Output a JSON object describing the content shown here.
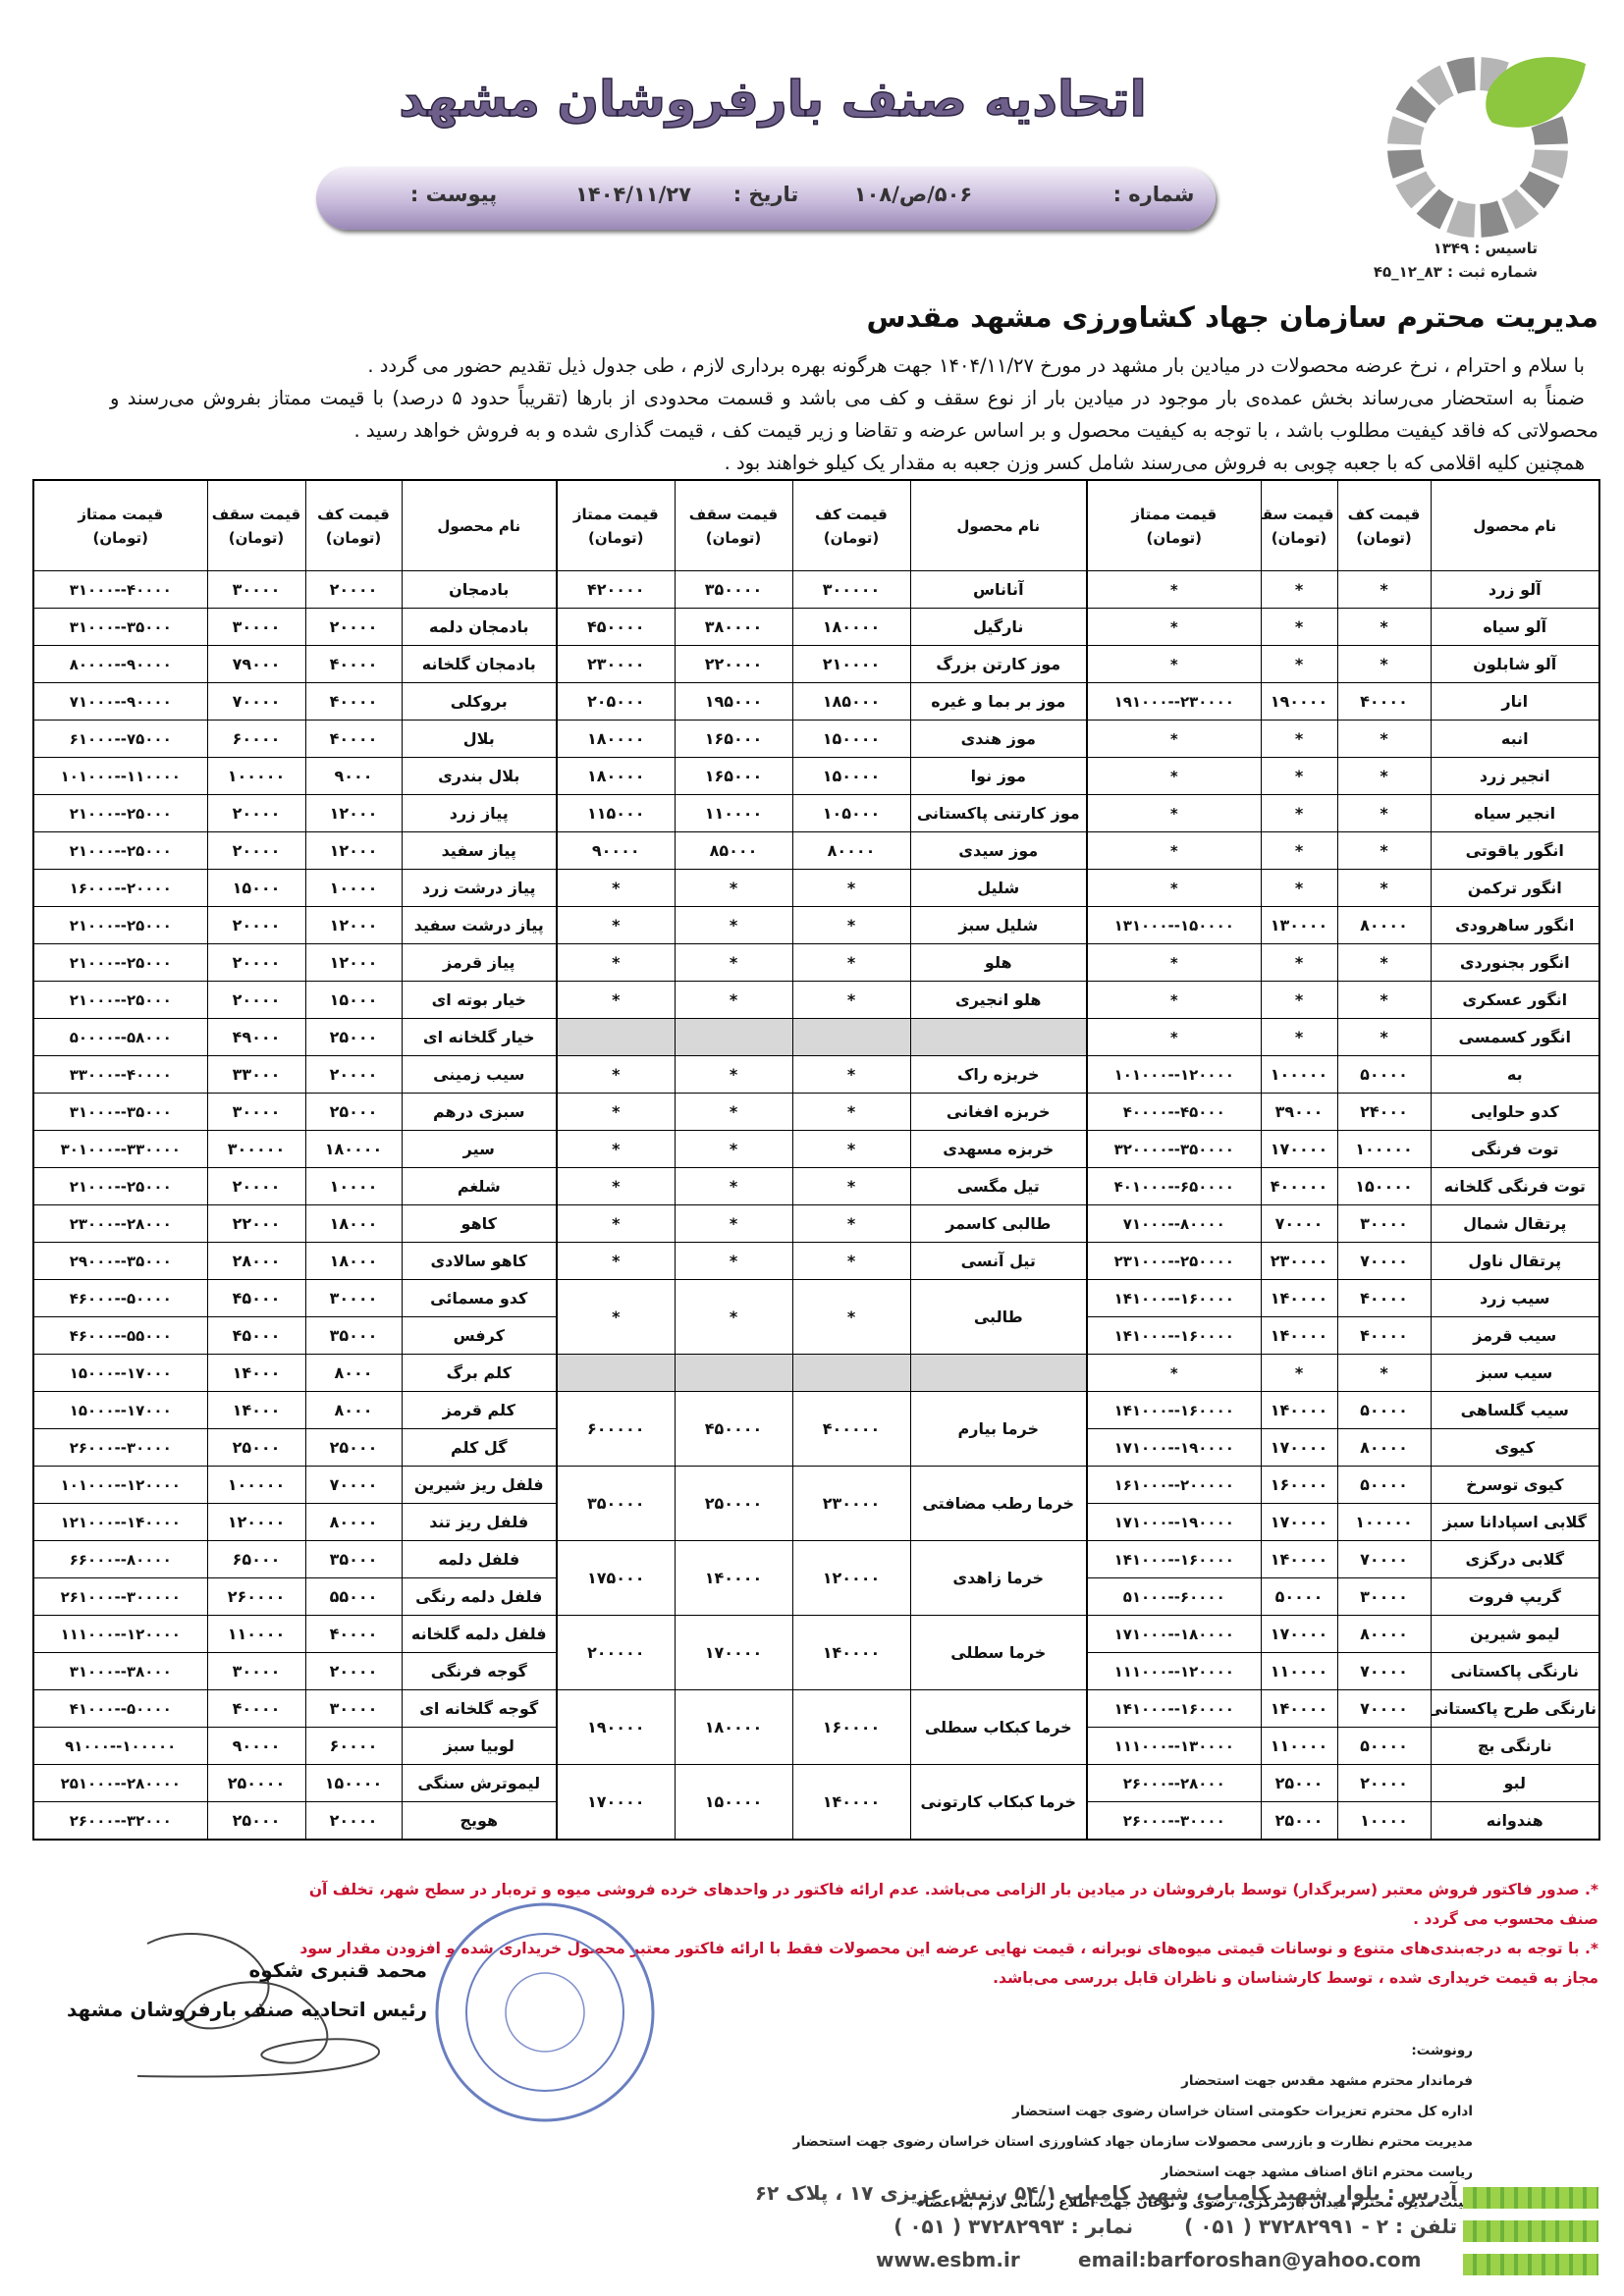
{
  "header": {
    "title": "اتحادیه صنف بارفروشان مشهد",
    "number_label": "شماره :",
    "number": "۵۰۶/ص/۱۰۸",
    "date_label": "تاریخ :",
    "date": "۱۴۰۴/۱۱/۲۷",
    "attachment_label": "پیوست :",
    "founded": "تاسیس : ۱۳۴۹",
    "registration": "شماره ثبت : ۸۳_۱۲_۴۵"
  },
  "letter": {
    "addressee": "مدیریت محترم سازمان جهاد کشاورزی مشهد مقدس",
    "paragraphs": [
      "با سلام و احترام ، نرخ عرضه محصولات در میادین بار مشهد در مورخ ۱۴۰۴/۱۱/۲۷ جهت هرگونه بهره برداری لازم ، طی جدول ذیل تقدیم حضور می گردد .",
      "ضمناً به استحضار می‌رساند بخش عمده‌ی بار موجود در میادین بار از نوع سقف و کف می باشد و قسمت محدودی از بارها (تقریباً حدود ۵ درصد) با قیمت ممتاز بفروش می‌رسند و محصولاتی که فاقد کیفیت مطلوب باشد ، با توجه به کیفیت محصول و بر اساس عرضه و تقاضا و زیر قیمت کف ، قیمت گذاری شده و به فروش خواهد رسید .",
      "همچنین کلیه اقلامی که با جعبه چوبی به فروش می‌رسند شامل کسر وزن جعبه به مقدار یک کیلو خواهند بود ."
    ]
  },
  "table": {
    "headers": [
      {
        "label": "نام محصول"
      },
      {
        "label": "قیمت کف",
        "unit": "(تومان)"
      },
      {
        "label": "قیمت سقف",
        "unit": "(تومان)"
      },
      {
        "label": "قیمت ممتاز",
        "unit": "(تومان)"
      }
    ],
    "rows": [
      {
        "right": [
          "آلو زرد",
          "*",
          "*",
          "*"
        ],
        "middle": [
          "آناناس",
          "۳۰۰۰۰۰",
          "۳۵۰۰۰۰",
          "۴۲۰۰۰۰"
        ],
        "left": [
          "بادمجان",
          "۲۰۰۰۰",
          "۳۰۰۰۰",
          "۳۱۰۰۰--۴۰۰۰۰"
        ]
      },
      {
        "right": [
          "آلو سیاه",
          "*",
          "*",
          "*"
        ],
        "middle": [
          "نارگیل",
          "۱۸۰۰۰۰",
          "۳۸۰۰۰۰",
          "۴۵۰۰۰۰"
        ],
        "left": [
          "بادمجان دلمه",
          "۲۰۰۰۰",
          "۳۰۰۰۰",
          "۳۱۰۰۰--۳۵۰۰۰"
        ]
      },
      {
        "right": [
          "آلو شابلون",
          "*",
          "*",
          "*"
        ],
        "middle": [
          "موز کارتن بزرگ",
          "۲۱۰۰۰۰",
          "۲۲۰۰۰۰",
          "۲۳۰۰۰۰"
        ],
        "left": [
          "بادمجان گلخانه",
          "۴۰۰۰۰",
          "۷۹۰۰۰",
          "۸۰۰۰۰--۹۰۰۰۰"
        ]
      },
      {
        "right": [
          "انار",
          "۴۰۰۰۰",
          "۱۹۰۰۰۰",
          "۱۹۱۰۰۰--۲۳۰۰۰۰"
        ],
        "middle": [
          "موز بر بما و غیره",
          "۱۸۵۰۰۰",
          "۱۹۵۰۰۰",
          "۲۰۵۰۰۰"
        ],
        "left": [
          "بروکلی",
          "۴۰۰۰۰",
          "۷۰۰۰۰",
          "۷۱۰۰۰--۹۰۰۰۰"
        ]
      },
      {
        "right": [
          "انبه",
          "*",
          "*",
          "*"
        ],
        "middle": [
          "موز هندی",
          "۱۵۰۰۰۰",
          "۱۶۵۰۰۰",
          "۱۸۰۰۰۰"
        ],
        "left": [
          "بلال",
          "۴۰۰۰۰",
          "۶۰۰۰۰",
          "۶۱۰۰۰--۷۵۰۰۰"
        ]
      },
      {
        "right": [
          "انجیر زرد",
          "*",
          "*",
          "*"
        ],
        "middle": [
          "موز نوا",
          "۱۵۰۰۰۰",
          "۱۶۵۰۰۰",
          "۱۸۰۰۰۰"
        ],
        "left": [
          "بلال بندری",
          "۹۰۰۰",
          "۱۰۰۰۰۰",
          "۱۰۱۰۰۰--۱۱۰۰۰۰"
        ]
      },
      {
        "right": [
          "انجیر سیاه",
          "*",
          "*",
          "*"
        ],
        "middle": [
          "موز کارتنی پاکستانی",
          "۱۰۵۰۰۰",
          "۱۱۰۰۰۰",
          "۱۱۵۰۰۰"
        ],
        "left": [
          "پیاز زرد",
          "۱۲۰۰۰",
          "۲۰۰۰۰",
          "۲۱۰۰۰--۲۵۰۰۰"
        ]
      },
      {
        "right": [
          "انگور یاقوتی",
          "*",
          "*",
          "*"
        ],
        "middle": [
          "موز سیدی",
          "۸۰۰۰۰",
          "۸۵۰۰۰",
          "۹۰۰۰۰"
        ],
        "left": [
          "پیاز سفید",
          "۱۲۰۰۰",
          "۲۰۰۰۰",
          "۲۱۰۰۰--۲۵۰۰۰"
        ]
      },
      {
        "right": [
          "انگور ترکمن",
          "*",
          "*",
          "*"
        ],
        "middle": [
          "شلیل",
          "*",
          "*",
          "*"
        ],
        "left": [
          "پیاز درشت زرد",
          "۱۰۰۰۰",
          "۱۵۰۰۰",
          "۱۶۰۰۰--۲۰۰۰۰"
        ]
      },
      {
        "right": [
          "انگور ساهرودی",
          "۸۰۰۰۰",
          "۱۳۰۰۰۰",
          "۱۳۱۰۰۰--۱۵۰۰۰۰"
        ],
        "middle": [
          "شلیل سبز",
          "*",
          "*",
          "*"
        ],
        "left": [
          "پیاز درشت سفید",
          "۱۲۰۰۰",
          "۲۰۰۰۰",
          "۲۱۰۰۰--۲۵۰۰۰"
        ]
      },
      {
        "right": [
          "انگور بجنوردی",
          "*",
          "*",
          "*"
        ],
        "middle": [
          "هلو",
          "*",
          "*",
          "*"
        ],
        "left": [
          "پیاز قرمز",
          "۱۲۰۰۰",
          "۲۰۰۰۰",
          "۲۱۰۰۰--۲۵۰۰۰"
        ]
      },
      {
        "right": [
          "انگور عسکری",
          "*",
          "*",
          "*"
        ],
        "middle": [
          "هلو انجیری",
          "*",
          "*",
          "*"
        ],
        "left": [
          "خیار بوته ای",
          "۱۵۰۰۰",
          "۲۰۰۰۰",
          "۲۱۰۰۰--۲۵۰۰۰"
        ]
      },
      {
        "right": [
          "انگور کسمسی",
          "*",
          "*",
          "*"
        ],
        "middle": [],
        "left": [
          "خیار گلخانه ای",
          "۲۵۰۰۰",
          "۴۹۰۰۰",
          "۵۰۰۰۰--۵۸۰۰۰"
        ]
      },
      {
        "right": [
          "به",
          "۵۰۰۰۰",
          "۱۰۰۰۰۰",
          "۱۰۱۰۰۰--۱۲۰۰۰۰"
        ],
        "middle": [
          "خربزه راک",
          "*",
          "*",
          "*"
        ],
        "left": [
          "سیب زمینی",
          "۲۰۰۰۰",
          "۳۳۰۰۰",
          "۳۳۰۰۰--۴۰۰۰۰"
        ]
      },
      {
        "right": [
          "کدو حلوایی",
          "۲۴۰۰۰",
          "۳۹۰۰۰",
          "۴۰۰۰۰--۴۵۰۰۰"
        ],
        "middle": [
          "خربزه افغانی",
          "*",
          "*",
          "*"
        ],
        "left": [
          "سبزی درهم",
          "۲۵۰۰۰",
          "۳۰۰۰۰",
          "۳۱۰۰۰--۳۵۰۰۰"
        ]
      },
      {
        "right": [
          "توت فرنگی",
          "۱۰۰۰۰۰",
          "۱۷۰۰۰۰",
          "۳۲۰۰۰۰--۳۵۰۰۰۰"
        ],
        "middle": [
          "خربزه مسهدی",
          "*",
          "*",
          "*"
        ],
        "left": [
          "سیر",
          "۱۸۰۰۰۰",
          "۳۰۰۰۰۰",
          "۳۰۱۰۰۰--۳۳۰۰۰۰"
        ]
      },
      {
        "right": [
          "توت فرنگی گلخانه",
          "۱۵۰۰۰۰",
          "۴۰۰۰۰۰",
          "۴۰۱۰۰۰--۶۵۰۰۰۰"
        ],
        "middle": [
          "تیل مگسی",
          "*",
          "*",
          "*"
        ],
        "left": [
          "شلغم",
          "۱۰۰۰۰",
          "۲۰۰۰۰",
          "۲۱۰۰۰--۲۵۰۰۰"
        ]
      },
      {
        "right": [
          "پرتقال شمال",
          "۳۰۰۰۰",
          "۷۰۰۰۰",
          "۷۱۰۰۰--۸۰۰۰۰"
        ],
        "middle": [
          "طالبی کاسمر",
          "*",
          "*",
          "*"
        ],
        "left": [
          "کاهو",
          "۱۸۰۰۰",
          "۲۲۰۰۰",
          "۲۳۰۰۰--۲۸۰۰۰"
        ]
      },
      {
        "right": [
          "پرتقال ناول",
          "۷۰۰۰۰",
          "۲۳۰۰۰۰",
          "۲۳۱۰۰۰--۲۵۰۰۰۰"
        ],
        "middle": [
          "تیل آنسی",
          "*",
          "*",
          "*"
        ],
        "left": [
          "کاهو سالادی",
          "۱۸۰۰۰",
          "۲۸۰۰۰",
          "۲۹۰۰۰--۳۵۰۰۰"
        ]
      },
      {
        "right": [
          "سیب زرد",
          "۴۰۰۰۰",
          "۱۴۰۰۰۰",
          "۱۴۱۰۰۰--۱۶۰۰۰۰"
        ],
        "middle": [
          "طالبی",
          "*",
          "*",
          "*"
        ],
        "left": [
          "کدو مسمائی",
          "۳۰۰۰۰",
          "۴۵۰۰۰",
          "۴۶۰۰۰--۵۰۰۰۰"
        ]
      },
      {
        "right": [
          "سیب قرمز",
          "۴۰۰۰۰",
          "۱۴۰۰۰۰",
          "۱۴۱۰۰۰--۱۶۰۰۰۰"
        ],
        "left": [
          "کرفس",
          "۳۵۰۰۰",
          "۴۵۰۰۰",
          "۴۶۰۰۰--۵۵۰۰۰"
        ]
      },
      {
        "right": [
          "سیب سبز",
          "*",
          "*",
          "*"
        ],
        "middle": [],
        "left": [
          "کلم برگ",
          "۸۰۰۰",
          "۱۴۰۰۰",
          "۱۵۰۰۰--۱۷۰۰۰"
        ]
      },
      {
        "right": [
          "سیب گلساهی",
          "۵۰۰۰۰",
          "۱۴۰۰۰۰",
          "۱۴۱۰۰۰--۱۶۰۰۰۰"
        ],
        "middle": [
          "خرما بیارم",
          "۴۰۰۰۰۰",
          "۴۵۰۰۰۰",
          "۶۰۰۰۰۰"
        ],
        "left": [
          "کلم قرمز",
          "۸۰۰۰",
          "۱۴۰۰۰",
          "۱۵۰۰۰--۱۷۰۰۰"
        ]
      },
      {
        "right": [
          "کیوی",
          "۸۰۰۰۰",
          "۱۷۰۰۰۰",
          "۱۷۱۰۰۰--۱۹۰۰۰۰"
        ],
        "left": [
          "گل کلم",
          "۲۵۰۰۰",
          "۲۵۰۰۰",
          "۲۶۰۰۰--۳۰۰۰۰"
        ]
      },
      {
        "right": [
          "کیوی توسرخ",
          "۵۰۰۰۰",
          "۱۶۰۰۰۰",
          "۱۶۱۰۰۰--۲۰۰۰۰۰"
        ],
        "middle": [
          "خرما رطب مضافتی",
          "۲۳۰۰۰۰",
          "۲۵۰۰۰۰",
          "۳۵۰۰۰۰"
        ],
        "left": [
          "فلفل ریز شیرین",
          "۷۰۰۰۰",
          "۱۰۰۰۰۰",
          "۱۰۱۰۰۰--۱۲۰۰۰۰"
        ]
      },
      {
        "right": [
          "گلابی اسپادانا سبز",
          "۱۰۰۰۰۰",
          "۱۷۰۰۰۰",
          "۱۷۱۰۰۰--۱۹۰۰۰۰"
        ],
        "left": [
          "فلفل ریز تند",
          "۸۰۰۰۰",
          "۱۲۰۰۰۰",
          "۱۲۱۰۰۰--۱۴۰۰۰۰"
        ]
      },
      {
        "right": [
          "گلابی درگزی",
          "۷۰۰۰۰",
          "۱۴۰۰۰۰",
          "۱۴۱۰۰۰--۱۶۰۰۰۰"
        ],
        "middle": [
          "خرما زاهدی",
          "۱۲۰۰۰۰",
          "۱۴۰۰۰۰",
          "۱۷۵۰۰۰"
        ],
        "left": [
          "فلفل دلمه",
          "۳۵۰۰۰",
          "۶۵۰۰۰",
          "۶۶۰۰۰--۸۰۰۰۰"
        ]
      },
      {
        "right": [
          "گریپ فروت",
          "۳۰۰۰۰",
          "۵۰۰۰۰",
          "۵۱۰۰۰--۶۰۰۰۰"
        ],
        "left": [
          "فلفل دلمه رنگی",
          "۵۵۰۰۰",
          "۲۶۰۰۰۰",
          "۲۶۱۰۰۰--۳۰۰۰۰۰"
        ]
      },
      {
        "right": [
          "لیمو شیرین",
          "۸۰۰۰۰",
          "۱۷۰۰۰۰",
          "۱۷۱۰۰۰--۱۸۰۰۰۰"
        ],
        "middle": [
          "خرما سطلی",
          "۱۴۰۰۰۰",
          "۱۷۰۰۰۰",
          "۲۰۰۰۰۰"
        ],
        "left": [
          "فلفل دلمه گلخانه",
          "۴۰۰۰۰",
          "۱۱۰۰۰۰",
          "۱۱۱۰۰۰--۱۲۰۰۰۰"
        ]
      },
      {
        "right": [
          "نارنگی پاکستانی",
          "۷۰۰۰۰",
          "۱۱۰۰۰۰",
          "۱۱۱۰۰۰--۱۲۰۰۰۰"
        ],
        "left": [
          "گوجه فرنگی",
          "۲۰۰۰۰",
          "۳۰۰۰۰",
          "۳۱۰۰۰--۳۸۰۰۰"
        ]
      },
      {
        "right": [
          "نارنگی طرح پاکستانی",
          "۷۰۰۰۰",
          "۱۴۰۰۰۰",
          "۱۴۱۰۰۰--۱۶۰۰۰۰"
        ],
        "middle": [
          "خرما کبکاب سطلی",
          "۱۶۰۰۰۰",
          "۱۸۰۰۰۰",
          "۱۹۰۰۰۰"
        ],
        "left": [
          "گوجه گلخانه ای",
          "۳۰۰۰۰",
          "۴۰۰۰۰",
          "۴۱۰۰۰--۵۰۰۰۰"
        ]
      },
      {
        "right": [
          "نارنگی بچ",
          "۵۰۰۰۰",
          "۱۱۰۰۰۰",
          "۱۱۱۰۰۰--۱۳۰۰۰۰"
        ],
        "left": [
          "لوبیا سبز",
          "۶۰۰۰۰",
          "۹۰۰۰۰",
          "۹۱۰۰۰--۱۰۰۰۰۰"
        ]
      },
      {
        "right": [
          "لبو",
          "۲۰۰۰۰",
          "۲۵۰۰۰",
          "۲۶۰۰۰--۲۸۰۰۰"
        ],
        "middle": [
          "خرما کبکاب کارتونی",
          "۱۴۰۰۰۰",
          "۱۵۰۰۰۰",
          "۱۷۰۰۰۰"
        ],
        "left": [
          "لیموترش سنگی",
          "۱۵۰۰۰۰",
          "۲۵۰۰۰۰",
          "۲۵۱۰۰۰--۲۸۰۰۰۰"
        ]
      },
      {
        "right": [
          "هندوانه",
          "۱۰۰۰۰",
          "۲۵۰۰۰",
          "۲۶۰۰۰--۳۰۰۰۰"
        ],
        "left": [
          "هویج",
          "۲۰۰۰۰",
          "۲۵۰۰۰",
          "۲۶۰۰۰--۳۲۰۰۰"
        ]
      }
    ]
  },
  "notes": [
    "*. صدور فاکتور فروش معتبر (سربرگدار) توسط بارفروشان در میادین بار الزامی می‌باشد. عدم ارائه فاکتور در واحدهای خرده فروشی میوه و تره‌بار در سطح شهر، تخلف آن صنف محسوب می گردد .",
    "*. با توجه به درجه‌بندی‌های متنوع و نوسانات قیمتی میوه‌های نوبرانه ، قیمت نهایی عرضه این محصولات فقط با ارائه فاکتور معتبر محصول خریداری شده و افزودن مقدار سود مجاز به قیمت خریداری شده ، توسط کارشناسان و ناظران قابل بررسی می‌باشد."
  ],
  "signature": {
    "name": "محمد قنبری شکوه",
    "position": "رئیس اتحادیه صنف بارفروشان مشهد"
  },
  "cc": {
    "label": "رونوشت:",
    "items": [
      "فرماندار محترم مشهد مقدس جهت استحضار",
      "اداره کل محترم تعزیرات حکومتی استان خراسان رضوی جهت استحضار",
      "مدیریت محترم نظارت و بازرسی محصولات سازمان جهاد کشاورزی استان خراسان رضوی جهت استحضار",
      "ریاست محترم اتاق اصناف مشهد جهت استحضار",
      "هیئت مدیره محترم میدان بارمرکزی، رضوی و نوغان جهت اطلاع رسانی لازم به اعضاء"
    ]
  },
  "footer": {
    "address": "آدرس : بلوار شهید کامیاب، شهید کامیاب ۵۴/۱ ، نبش عزیزی ۱۷ ، پلاک ۶۲",
    "phone": "تلفن : ۲ - ۳۷۲۸۲۹۹۱ ( ۰۵۱ )",
    "fax": "نمابر : ۳۷۲۸۲۹۹۳ ( ۰۵۱ )",
    "email": "email:barforoshan@yahoo.com",
    "website": "www.esbm.ir"
  }
}
